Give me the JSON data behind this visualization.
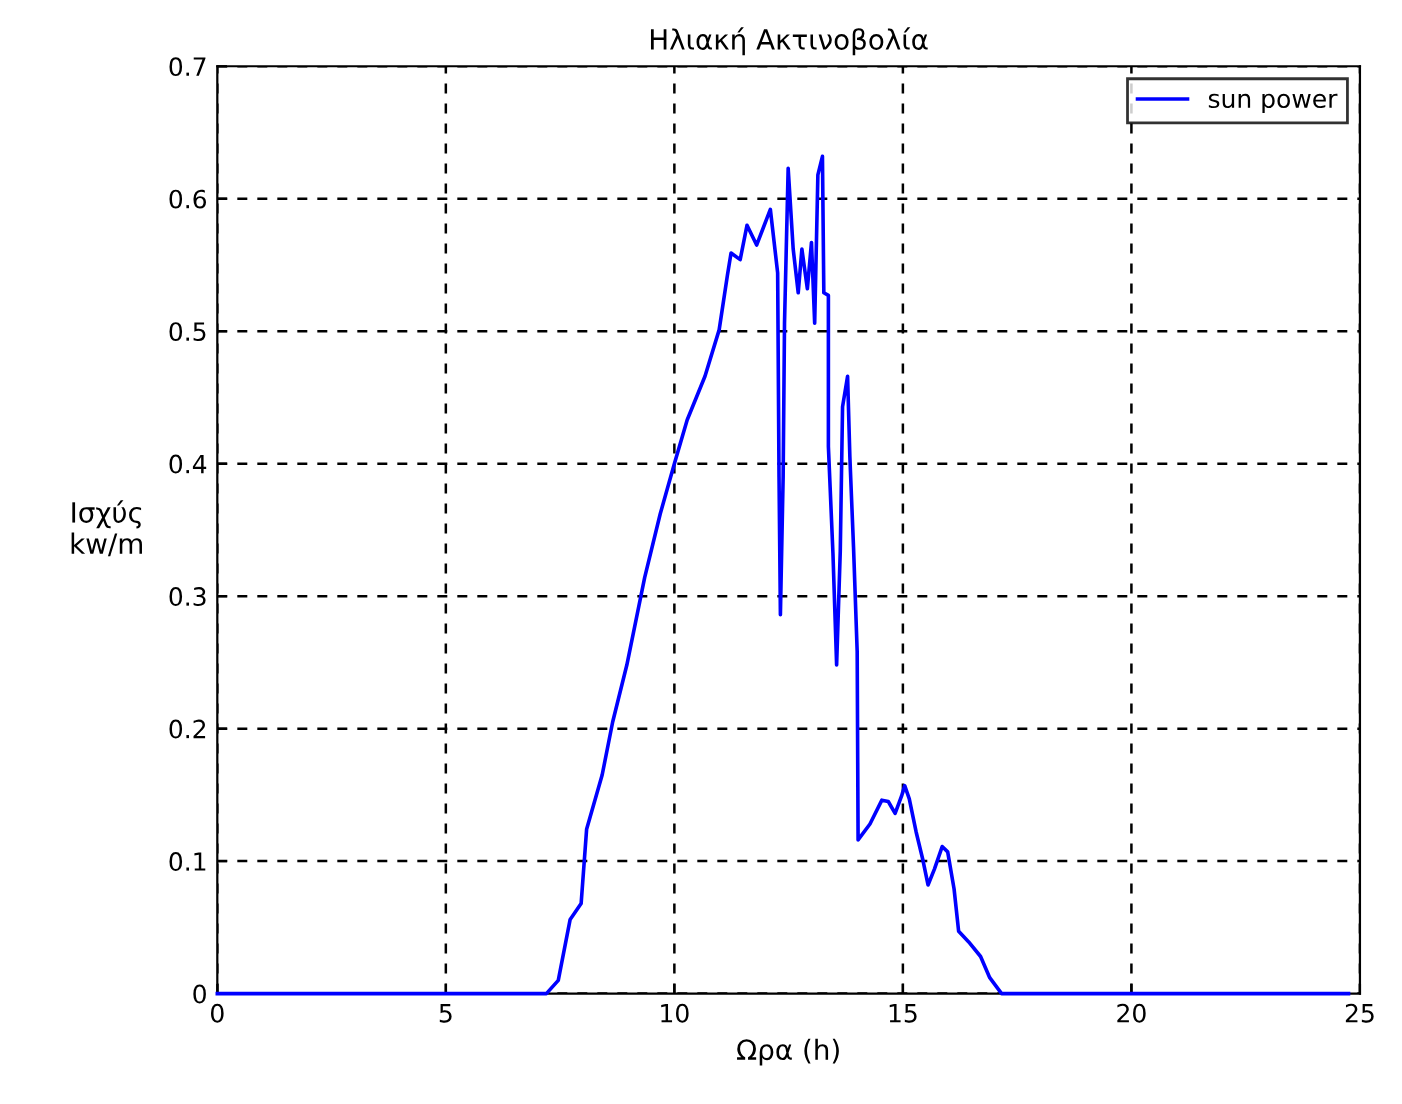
{
  "chart_data": {
    "type": "line",
    "title": "Ηλιακή Ακτινοβολία",
    "xlabel": "Ωρα (h)",
    "ylabel": "Ισχύς\nkw/m",
    "series": [
      {
        "name": "sun power",
        "color": "#0000ff",
        "x": [
          0,
          7.2,
          7.46,
          7.72,
          7.96,
          8.08,
          8.42,
          8.65,
          8.96,
          9.35,
          9.69,
          10.0,
          10.28,
          10.67,
          10.98,
          11.16,
          11.24,
          11.44,
          11.59,
          11.8,
          12.1,
          12.26,
          12.29,
          12.32,
          12.38,
          12.41,
          12.49,
          12.6,
          12.71,
          12.79,
          12.91,
          13.0,
          13.07,
          13.14,
          13.24,
          13.27,
          13.37,
          13.37,
          13.47,
          13.55,
          13.63,
          13.68,
          13.79,
          13.84,
          13.92,
          14.0,
          14.02,
          14.28,
          14.54,
          14.68,
          14.83,
          14.97,
          15.04,
          15.14,
          15.29,
          15.43,
          15.55,
          15.69,
          15.86,
          15.98,
          16.12,
          16.22,
          16.44,
          16.7,
          16.9,
          17.16,
          24.75
        ],
        "values": [
          0,
          0,
          0.01,
          0.056,
          0.068,
          0.124,
          0.165,
          0.205,
          0.248,
          0.314,
          0.362,
          0.4,
          0.433,
          0.466,
          0.501,
          0.542,
          0.559,
          0.554,
          0.58,
          0.565,
          0.592,
          0.544,
          0.39,
          0.286,
          0.39,
          0.506,
          0.623,
          0.562,
          0.529,
          0.562,
          0.532,
          0.567,
          0.506,
          0.618,
          0.632,
          0.529,
          0.527,
          0.413,
          0.332,
          0.248,
          0.334,
          0.443,
          0.466,
          0.405,
          0.337,
          0.258,
          0.116,
          0.128,
          0.146,
          0.145,
          0.136,
          0.149,
          0.157,
          0.147,
          0.122,
          0.102,
          0.082,
          0.094,
          0.111,
          0.107,
          0.079,
          0.047,
          0.039,
          0.028,
          0.012,
          0,
          0
        ]
      }
    ],
    "xlim": [
      0,
      25
    ],
    "xticks": [
      0,
      5,
      10,
      15,
      20,
      25
    ],
    "ylim": [
      0,
      0.7
    ],
    "yticks": [
      0,
      0.1,
      0.2,
      0.3,
      0.4,
      0.5,
      0.6,
      0.7
    ],
    "grid": true,
    "legend": "top right",
    "line_style": "solid",
    "marker": "none"
  }
}
